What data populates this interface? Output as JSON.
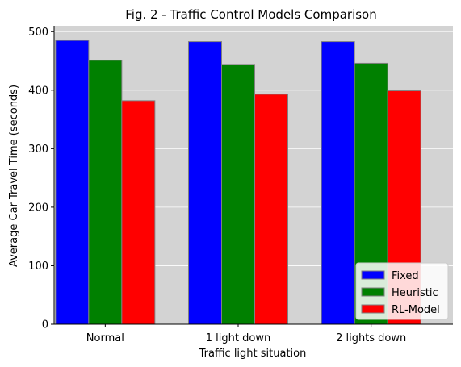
{
  "chart_data": {
    "type": "bar",
    "title": "Fig. 2 - Traffic Control Models Comparison",
    "xlabel": "Traffic light situation",
    "ylabel": "Average Car Travel Time (seconds)",
    "categories": [
      "Normal",
      "1 light down",
      "2 lights down"
    ],
    "series": [
      {
        "name": "Fixed",
        "color": "#0000ff",
        "values": [
          485,
          483,
          483
        ]
      },
      {
        "name": "Heuristic",
        "color": "#008000",
        "values": [
          451,
          444,
          446
        ]
      },
      {
        "name": "RL-Model",
        "color": "#ff0000",
        "values": [
          382,
          393,
          399
        ]
      }
    ],
    "ylim": [
      0,
      510
    ],
    "yticks": [
      0,
      100,
      200,
      300,
      400,
      500
    ],
    "plot_background": "#d3d3d3",
    "grid": "horizontal",
    "legend_position": "lower-right"
  }
}
